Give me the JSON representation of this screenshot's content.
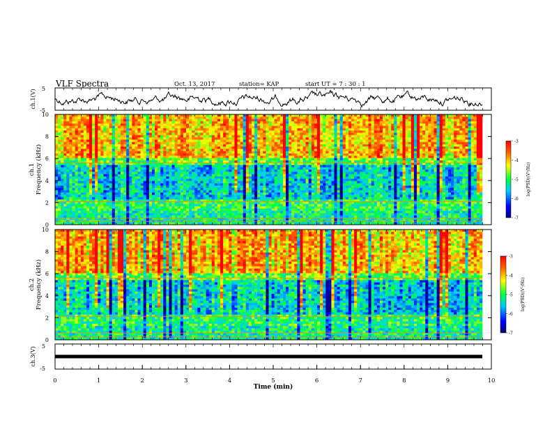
{
  "header": {
    "title": "VLF Spectra",
    "date": "Oct. 13, 2017",
    "station": "station= KAP",
    "start": "start  UT =   7 : 30 : 1"
  },
  "chart_data": [
    {
      "type": "line",
      "name": "ch1-waveform",
      "ylabel": "ch.1(V)",
      "ylim": [
        -5,
        5
      ],
      "yticks": [
        "-5",
        "5"
      ],
      "xlim": [
        0,
        10
      ]
    },
    {
      "type": "heatmap",
      "name": "ch1-spectrogram",
      "ylabel_line1": "ch.1",
      "ylabel_line2": "Frequency  (kHz)",
      "ylim": [
        0,
        10
      ],
      "yticks": [
        "0",
        "2",
        "4",
        "6",
        "8",
        "10"
      ],
      "xlim": [
        0,
        10
      ],
      "colorbar": {
        "label": "log(PSD)(V²/Hz)",
        "range": [
          -7,
          -3
        ],
        "ticks": [
          "-3",
          "-4",
          "-5",
          "-6",
          "-7"
        ]
      }
    },
    {
      "type": "heatmap",
      "name": "ch2-spectrogram",
      "ylabel_line1": "ch.2",
      "ylabel_line2": "Frequency  (kHz)",
      "ylim": [
        0,
        10
      ],
      "yticks": [
        "0",
        "2",
        "4",
        "6",
        "8",
        "10"
      ],
      "xlim": [
        0,
        10
      ],
      "colorbar": {
        "label": "log(PSD)(V²/Hz)",
        "range": [
          -7,
          -3
        ],
        "ticks": [
          "-3",
          "-4",
          "-5",
          "-6",
          "-7"
        ]
      }
    },
    {
      "type": "line",
      "name": "ch3-waveform",
      "ylabel": "ch.3(V)",
      "ylim": [
        -5,
        5
      ],
      "yticks": [
        "-5",
        "5"
      ],
      "value": 0,
      "xlabel": "Time  (min)",
      "xlim": [
        0,
        10
      ],
      "xticks": [
        "0",
        "1",
        "2",
        "3",
        "4",
        "5",
        "6",
        "7",
        "8",
        "9",
        "10"
      ]
    }
  ]
}
